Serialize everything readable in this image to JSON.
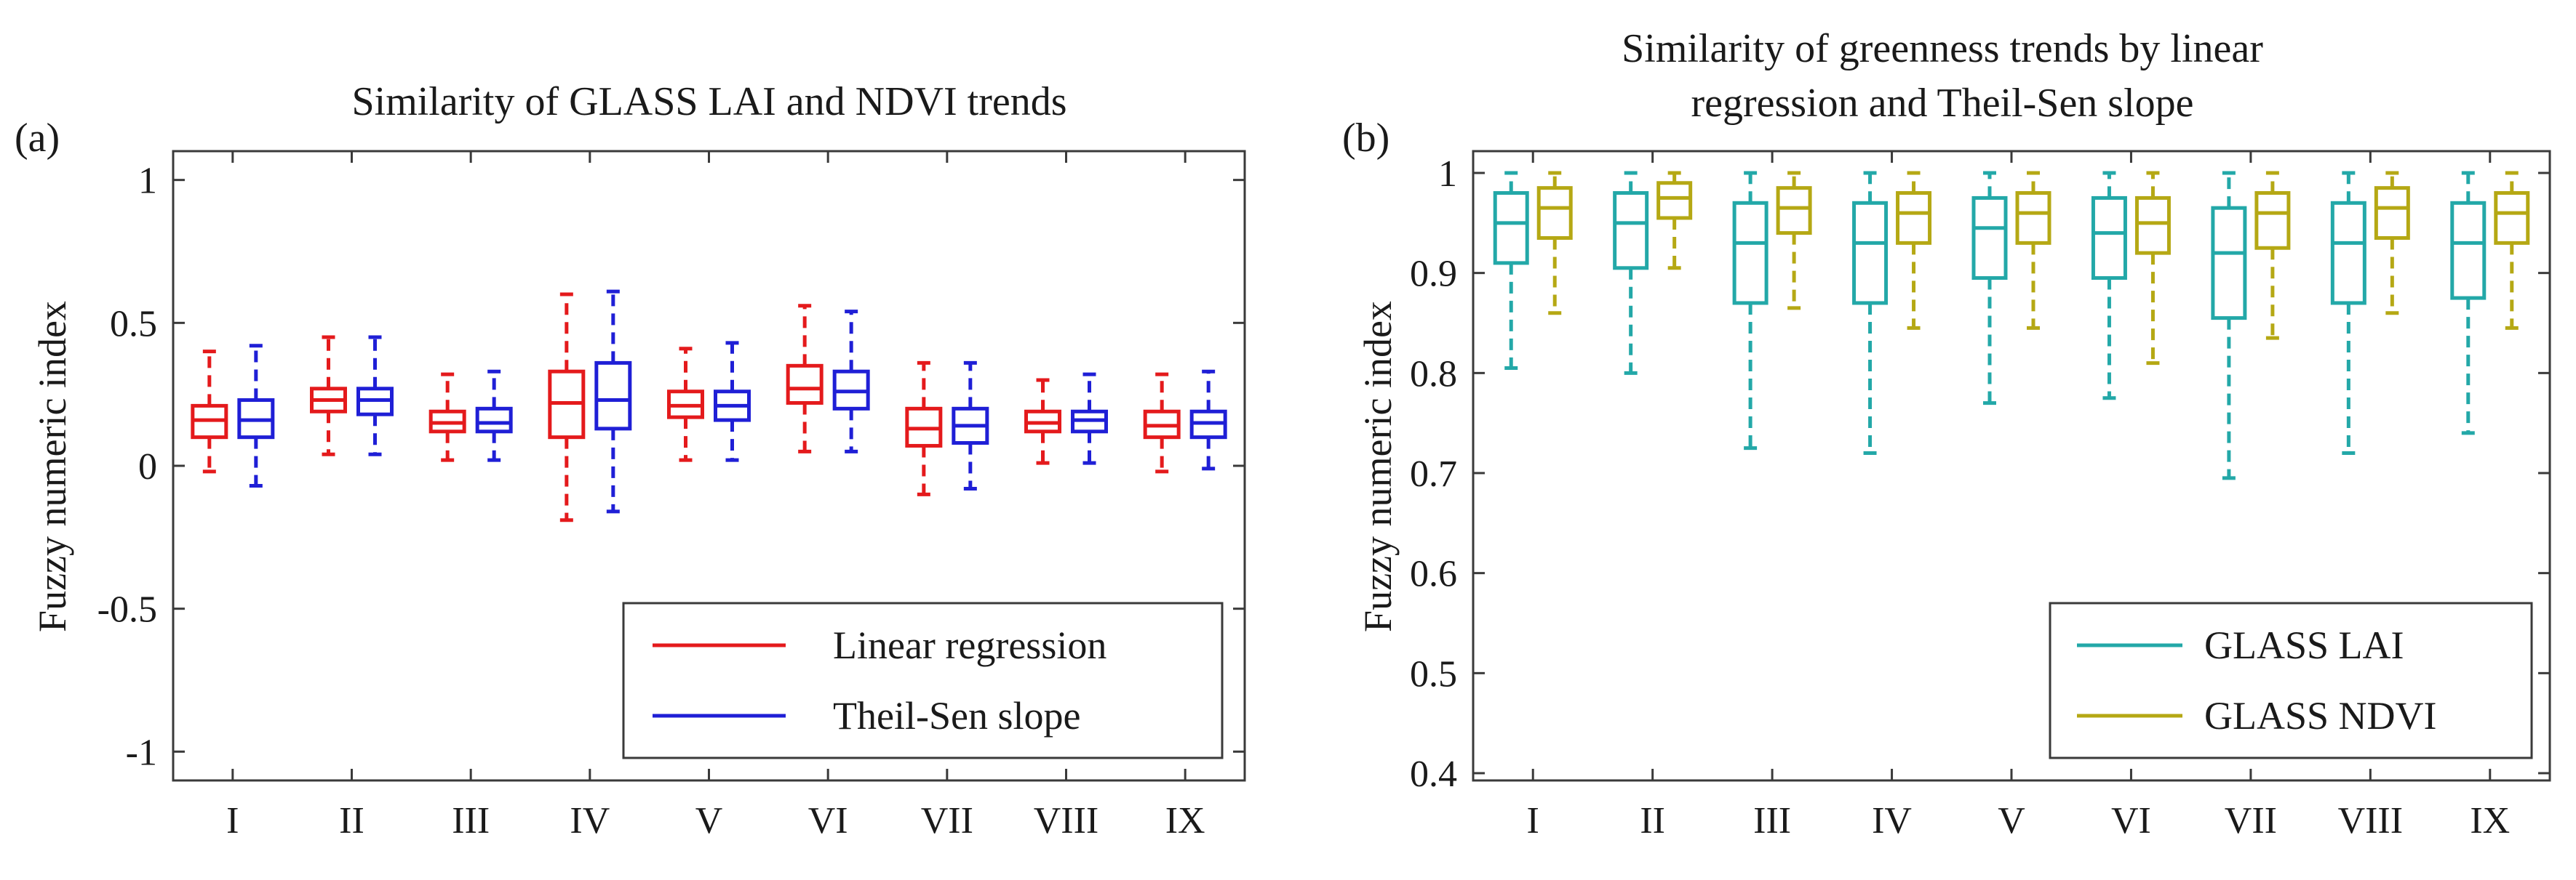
{
  "chart_data": [
    {
      "type": "boxplot",
      "panel_label": "(a)",
      "title": "Similarity of GLASS LAI and NDVI trends",
      "xlabel": "",
      "ylabel": "Fuzzy numeric index",
      "ylim": [
        -1.05,
        1.05
      ],
      "yticks": [
        1,
        0.5,
        0,
        -0.5,
        -1
      ],
      "ytick_labels": [
        "1",
        "0.5",
        "0",
        "-0.5",
        "-1"
      ],
      "categories": [
        "I",
        "II",
        "III",
        "IV",
        "V",
        "VI",
        "VII",
        "VIII",
        "IX"
      ],
      "legend_position": "bottom-right",
      "series": [
        {
          "name": "Linear regression",
          "color": "#e41a1c",
          "boxes": [
            {
              "whisker_low": -0.02,
              "q1": 0.1,
              "median": 0.16,
              "q3": 0.21,
              "whisker_high": 0.4
            },
            {
              "whisker_low": 0.04,
              "q1": 0.19,
              "median": 0.23,
              "q3": 0.27,
              "whisker_high": 0.45
            },
            {
              "whisker_low": 0.02,
              "q1": 0.12,
              "median": 0.15,
              "q3": 0.19,
              "whisker_high": 0.32
            },
            {
              "whisker_low": -0.19,
              "q1": 0.1,
              "median": 0.22,
              "q3": 0.33,
              "whisker_high": 0.6
            },
            {
              "whisker_low": 0.02,
              "q1": 0.17,
              "median": 0.21,
              "q3": 0.26,
              "whisker_high": 0.41
            },
            {
              "whisker_low": 0.05,
              "q1": 0.22,
              "median": 0.27,
              "q3": 0.35,
              "whisker_high": 0.56
            },
            {
              "whisker_low": -0.1,
              "q1": 0.07,
              "median": 0.13,
              "q3": 0.2,
              "whisker_high": 0.36
            },
            {
              "whisker_low": 0.01,
              "q1": 0.12,
              "median": 0.15,
              "q3": 0.19,
              "whisker_high": 0.3
            },
            {
              "whisker_low": -0.02,
              "q1": 0.1,
              "median": 0.14,
              "q3": 0.19,
              "whisker_high": 0.32
            }
          ]
        },
        {
          "name": "Theil-Sen slope",
          "color": "#1f1fd6",
          "boxes": [
            {
              "whisker_low": -0.07,
              "q1": 0.1,
              "median": 0.16,
              "q3": 0.23,
              "whisker_high": 0.42
            },
            {
              "whisker_low": 0.04,
              "q1": 0.18,
              "median": 0.23,
              "q3": 0.27,
              "whisker_high": 0.45
            },
            {
              "whisker_low": 0.02,
              "q1": 0.12,
              "median": 0.15,
              "q3": 0.2,
              "whisker_high": 0.33
            },
            {
              "whisker_low": -0.16,
              "q1": 0.13,
              "median": 0.23,
              "q3": 0.36,
              "whisker_high": 0.61
            },
            {
              "whisker_low": 0.02,
              "q1": 0.16,
              "median": 0.21,
              "q3": 0.26,
              "whisker_high": 0.43
            },
            {
              "whisker_low": 0.05,
              "q1": 0.2,
              "median": 0.26,
              "q3": 0.33,
              "whisker_high": 0.54
            },
            {
              "whisker_low": -0.08,
              "q1": 0.08,
              "median": 0.14,
              "q3": 0.2,
              "whisker_high": 0.36
            },
            {
              "whisker_low": 0.01,
              "q1": 0.12,
              "median": 0.16,
              "q3": 0.19,
              "whisker_high": 0.32
            },
            {
              "whisker_low": -0.01,
              "q1": 0.1,
              "median": 0.15,
              "q3": 0.19,
              "whisker_high": 0.33
            }
          ]
        }
      ]
    },
    {
      "type": "boxplot",
      "panel_label": "(b)",
      "title": "Similarity of greenness trends by linear regression and Theil-Sen slope",
      "title_lines": [
        "Similarity of greenness trends by linear",
        "regression and Theil-Sen slope"
      ],
      "xlabel": "",
      "ylabel": "Fuzzy numeric index",
      "ylim": [
        0.4,
        1.0
      ],
      "yticks": [
        1,
        0.9,
        0.8,
        0.7,
        0.6,
        0.5,
        0.4
      ],
      "ytick_labels": [
        "1",
        "0.9",
        "0.8",
        "0.7",
        "0.6",
        "0.5",
        "0.4"
      ],
      "categories": [
        "I",
        "II",
        "III",
        "IV",
        "V",
        "VI",
        "VII",
        "VIII",
        "IX"
      ],
      "legend_position": "bottom-right",
      "series": [
        {
          "name": "GLASS LAI",
          "color": "#23a8a8",
          "boxes": [
            {
              "whisker_low": 0.805,
              "q1": 0.91,
              "median": 0.95,
              "q3": 0.98,
              "whisker_high": 1.0
            },
            {
              "whisker_low": 0.8,
              "q1": 0.905,
              "median": 0.95,
              "q3": 0.98,
              "whisker_high": 1.0
            },
            {
              "whisker_low": 0.725,
              "q1": 0.87,
              "median": 0.93,
              "q3": 0.97,
              "whisker_high": 1.0
            },
            {
              "whisker_low": 0.72,
              "q1": 0.87,
              "median": 0.93,
              "q3": 0.97,
              "whisker_high": 1.0
            },
            {
              "whisker_low": 0.77,
              "q1": 0.895,
              "median": 0.945,
              "q3": 0.975,
              "whisker_high": 1.0
            },
            {
              "whisker_low": 0.775,
              "q1": 0.895,
              "median": 0.94,
              "q3": 0.975,
              "whisker_high": 1.0
            },
            {
              "whisker_low": 0.695,
              "q1": 0.855,
              "median": 0.92,
              "q3": 0.965,
              "whisker_high": 1.0
            },
            {
              "whisker_low": 0.72,
              "q1": 0.87,
              "median": 0.93,
              "q3": 0.97,
              "whisker_high": 1.0
            },
            {
              "whisker_low": 0.74,
              "q1": 0.875,
              "median": 0.93,
              "q3": 0.97,
              "whisker_high": 1.0
            }
          ]
        },
        {
          "name": "GLASS NDVI",
          "color": "#b5a814",
          "boxes": [
            {
              "whisker_low": 0.86,
              "q1": 0.935,
              "median": 0.965,
              "q3": 0.985,
              "whisker_high": 1.0
            },
            {
              "whisker_low": 0.905,
              "q1": 0.955,
              "median": 0.975,
              "q3": 0.99,
              "whisker_high": 1.0
            },
            {
              "whisker_low": 0.865,
              "q1": 0.94,
              "median": 0.965,
              "q3": 0.985,
              "whisker_high": 1.0
            },
            {
              "whisker_low": 0.845,
              "q1": 0.93,
              "median": 0.96,
              "q3": 0.98,
              "whisker_high": 1.0
            },
            {
              "whisker_low": 0.845,
              "q1": 0.93,
              "median": 0.96,
              "q3": 0.98,
              "whisker_high": 1.0
            },
            {
              "whisker_low": 0.81,
              "q1": 0.92,
              "median": 0.95,
              "q3": 0.975,
              "whisker_high": 1.0
            },
            {
              "whisker_low": 0.835,
              "q1": 0.925,
              "median": 0.96,
              "q3": 0.98,
              "whisker_high": 1.0
            },
            {
              "whisker_low": 0.86,
              "q1": 0.935,
              "median": 0.965,
              "q3": 0.985,
              "whisker_high": 1.0
            },
            {
              "whisker_low": 0.845,
              "q1": 0.93,
              "median": 0.96,
              "q3": 0.98,
              "whisker_high": 1.0
            }
          ]
        }
      ]
    }
  ]
}
